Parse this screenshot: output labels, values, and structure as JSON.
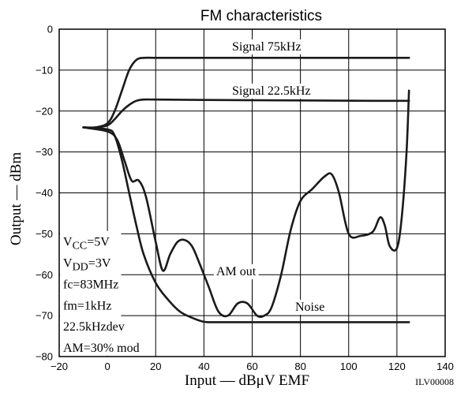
{
  "chart_data": {
    "type": "line",
    "title": "FM characteristics",
    "xlabel": "Input — dBμV EMF",
    "ylabel": "Output — dBm",
    "xlim": [
      -20,
      140
    ],
    "ylim": [
      -80,
      0
    ],
    "xticks": [
      -20,
      0,
      20,
      40,
      60,
      80,
      100,
      120,
      140
    ],
    "yticks": [
      0,
      -10,
      -20,
      -30,
      -40,
      -50,
      -60,
      -70,
      -80
    ],
    "grid": true,
    "figure_code": "ILV00008",
    "conditions": [
      {
        "main": "V",
        "sub": "CC",
        "rest": "=5V"
      },
      {
        "main": "V",
        "sub": "DD",
        "rest": "=3V"
      },
      {
        "main": "fc=83MHz",
        "sub": "",
        "rest": ""
      },
      {
        "main": "fm=1kHz",
        "sub": "",
        "rest": ""
      },
      {
        "main": "22.5kHzdev",
        "sub": "",
        "rest": ""
      },
      {
        "main": "AM=30% mod",
        "sub": "",
        "rest": ""
      }
    ],
    "series": [
      {
        "name": "Signal 75kHz",
        "x": [
          -10,
          -5,
          0,
          3,
          6,
          9,
          12,
          15,
          20,
          30,
          60,
          90,
          125
        ],
        "y": [
          -24,
          -24,
          -23,
          -20,
          -15,
          -10,
          -7.5,
          -7,
          -7,
          -7,
          -7,
          -7,
          -7
        ]
      },
      {
        "name": "Signal 22.5kHz",
        "x": [
          -10,
          -5,
          0,
          3,
          6,
          9,
          12,
          15,
          20,
          40,
          80,
          110,
          125
        ],
        "y": [
          -24,
          -24,
          -23.5,
          -22,
          -20,
          -18.5,
          -17.5,
          -17.2,
          -17.2,
          -17.3,
          -17.4,
          -17.5,
          -17.5
        ]
      },
      {
        "name": "Noise",
        "x": [
          -10,
          0,
          3,
          6,
          9,
          12,
          15,
          20,
          25,
          30,
          35,
          40,
          45,
          60,
          80,
          100,
          125
        ],
        "y": [
          -24,
          -24.5,
          -26,
          -32,
          -40,
          -48,
          -55,
          -62,
          -66,
          -69,
          -70.5,
          -71.5,
          -71.6,
          -71.6,
          -71.6,
          -71.6,
          -71.6
        ]
      },
      {
        "name": "AM out",
        "x": [
          -10,
          0,
          4,
          7,
          10,
          13,
          16,
          20,
          23,
          26,
          29,
          32,
          35,
          38,
          42,
          46,
          50,
          54,
          58,
          62,
          65,
          68,
          72,
          76,
          80,
          85,
          90,
          93,
          96,
          100,
          105,
          110,
          113,
          115,
          117,
          120,
          122,
          124,
          125
        ],
        "y": [
          -24,
          -25,
          -27,
          -32,
          -37,
          -37,
          -41,
          -52,
          -59,
          -55,
          -52,
          -51.5,
          -53,
          -57,
          -63,
          -69,
          -70,
          -67,
          -67,
          -70,
          -70,
          -68,
          -60,
          -49,
          -42,
          -39,
          -36,
          -35.5,
          -40,
          -50,
          -50.5,
          -49.5,
          -46,
          -48,
          -53,
          -53.5,
          -46,
          -30,
          -15
        ]
      }
    ],
    "annotations": [
      {
        "text": "Signal 75kHz",
        "series": "Signal 75kHz"
      },
      {
        "text": "Signal 22.5kHz",
        "series": "Signal 22.5kHz"
      },
      {
        "text": "AM out",
        "series": "AM out"
      },
      {
        "text": "Noise",
        "series": "Noise"
      }
    ]
  }
}
